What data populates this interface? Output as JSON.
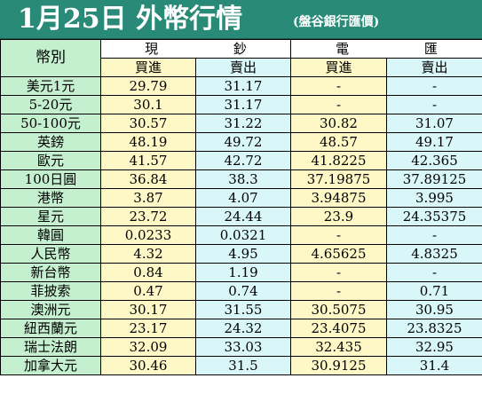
{
  "header": {
    "title": "1月25日 外幣行情",
    "source": "(盤谷銀行匯價)"
  },
  "table": {
    "corner_label": "幣別",
    "groups": {
      "cash": "現 鈔",
      "telegraphic": "電 匯"
    },
    "subheaders": {
      "buy": "買進",
      "sell": "賣出"
    },
    "rows": [
      {
        "currency": "美元1元",
        "cash_buy": "29.79",
        "cash_sell": "31.17",
        "tt_buy": "-",
        "tt_sell": "-"
      },
      {
        "currency": "5-20元",
        "cash_buy": "30.1",
        "cash_sell": "31.17",
        "tt_buy": "-",
        "tt_sell": "-"
      },
      {
        "currency": "50-100元",
        "cash_buy": "30.57",
        "cash_sell": "31.22",
        "tt_buy": "30.82",
        "tt_sell": "31.07"
      },
      {
        "currency": "英鎊",
        "cash_buy": "48.19",
        "cash_sell": "49.72",
        "tt_buy": "48.57",
        "tt_sell": "49.17"
      },
      {
        "currency": "歐元",
        "cash_buy": "41.57",
        "cash_sell": "42.72",
        "tt_buy": "41.8225",
        "tt_sell": "42.365"
      },
      {
        "currency": "100日圓",
        "cash_buy": "36.84",
        "cash_sell": "38.3",
        "tt_buy": "37.19875",
        "tt_sell": "37.89125"
      },
      {
        "currency": "港幣",
        "cash_buy": "3.87",
        "cash_sell": "4.07",
        "tt_buy": "3.94875",
        "tt_sell": "3.995"
      },
      {
        "currency": "星元",
        "cash_buy": "23.72",
        "cash_sell": "24.44",
        "tt_buy": "23.9",
        "tt_sell": "24.35375"
      },
      {
        "currency": "韓圓",
        "cash_buy": "0.0233",
        "cash_sell": "0.0321",
        "tt_buy": "-",
        "tt_sell": "-"
      },
      {
        "currency": "人民幣",
        "cash_buy": "4.32",
        "cash_sell": "4.95",
        "tt_buy": "4.65625",
        "tt_sell": "4.8325"
      },
      {
        "currency": "新台幣",
        "cash_buy": "0.84",
        "cash_sell": "1.19",
        "tt_buy": "-",
        "tt_sell": "-"
      },
      {
        "currency": "菲披索",
        "cash_buy": "0.47",
        "cash_sell": "0.74",
        "tt_buy": "-",
        "tt_sell": "0.71"
      },
      {
        "currency": "澳洲元",
        "cash_buy": "30.17",
        "cash_sell": "31.55",
        "tt_buy": "30.5075",
        "tt_sell": "30.95"
      },
      {
        "currency": "紐西蘭元",
        "cash_buy": "23.17",
        "cash_sell": "24.32",
        "tt_buy": "23.4075",
        "tt_sell": "23.8325"
      },
      {
        "currency": "瑞士法朗",
        "cash_buy": "32.09",
        "cash_sell": "33.03",
        "tt_buy": "32.435",
        "tt_sell": "32.95"
      },
      {
        "currency": "加拿大元",
        "cash_buy": "30.46",
        "cash_sell": "31.5",
        "tt_buy": "30.9125",
        "tt_sell": "31.4"
      }
    ]
  },
  "colors": {
    "title_background": "#2a8a78",
    "currency_column": "#c4f0cf",
    "buy_columns": "#fdf8c6",
    "sell_columns": "#d9f6f8"
  }
}
